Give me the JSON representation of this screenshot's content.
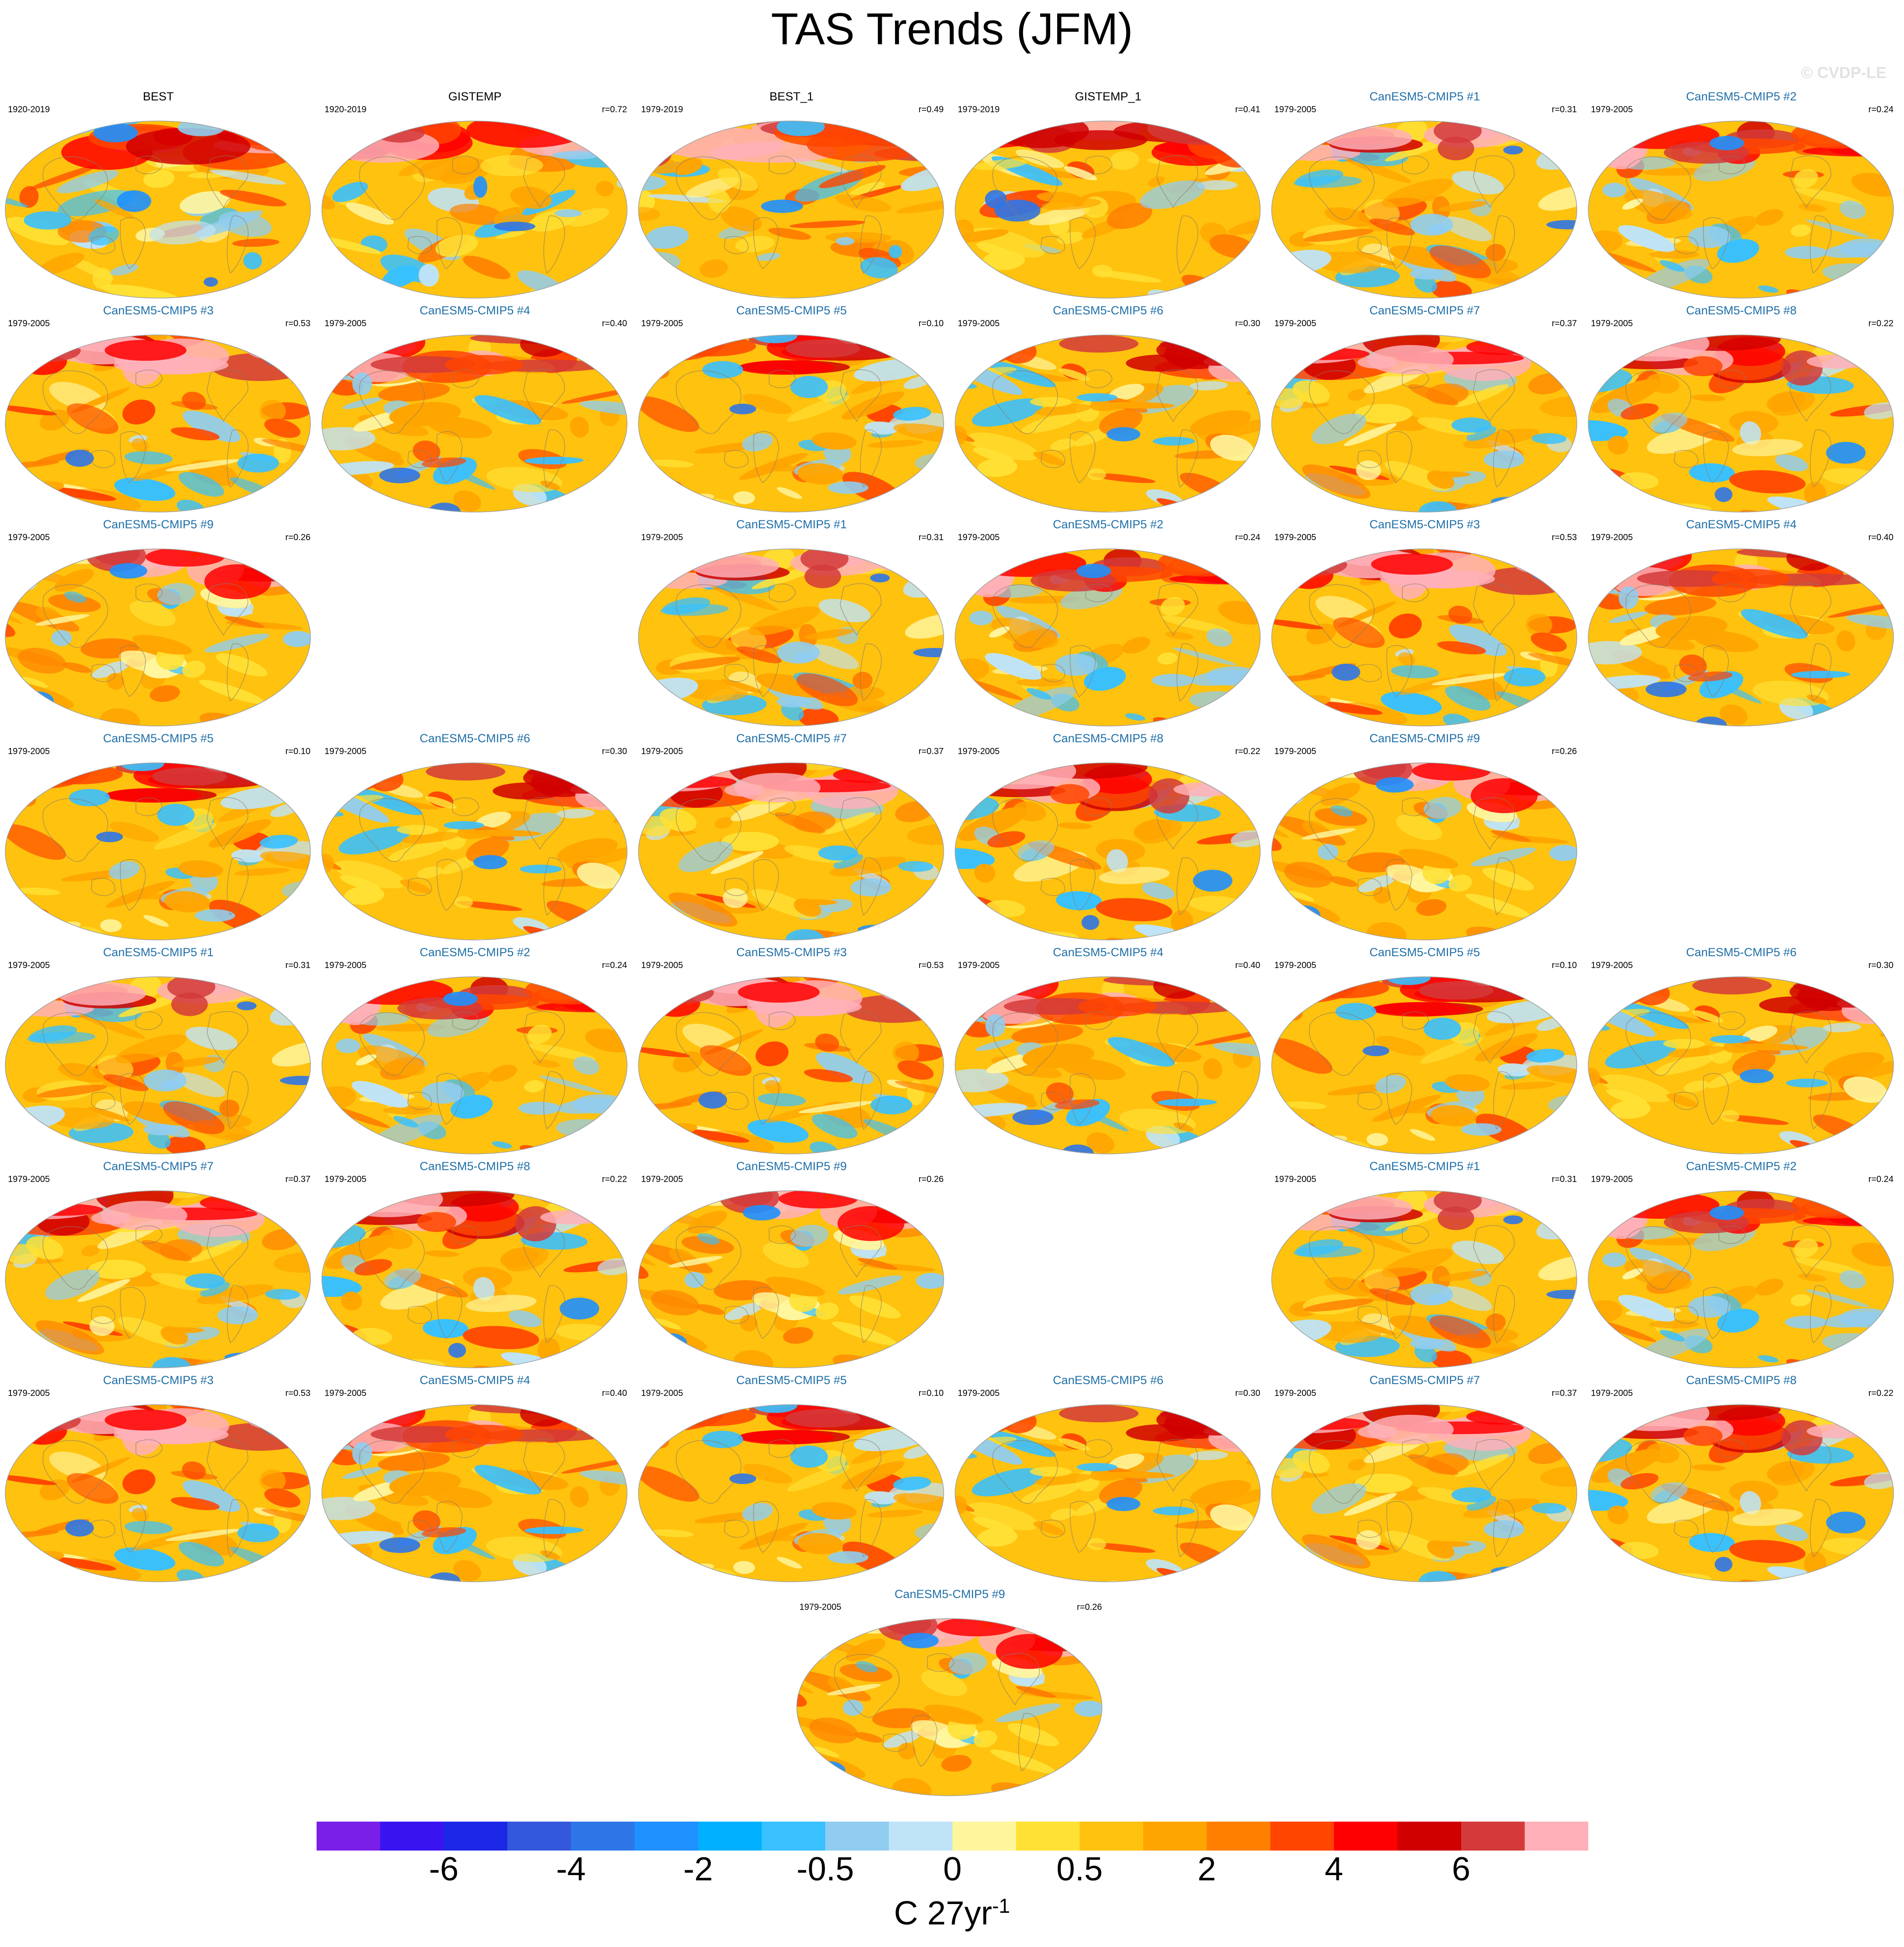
{
  "figure": {
    "title": "TAS Trends (JFM)",
    "watermark": "© CVDP-LE"
  },
  "panels": [
    {
      "title": "BEST",
      "period": "1920-2019",
      "corr": "",
      "kind": "obs",
      "seed": 1
    },
    {
      "title": "GISTEMP",
      "period": "1920-2019",
      "corr": "r=0.72",
      "kind": "obs",
      "seed": 2
    },
    {
      "title": "BEST_1",
      "period": "1979-2019",
      "corr": "r=0.49",
      "kind": "obs",
      "seed": 3
    },
    {
      "title": "GISTEMP_1",
      "period": "1979-2019",
      "corr": "r=0.41",
      "kind": "obs",
      "seed": 4
    },
    {
      "title": "CanESM5-CMIP5 #1",
      "period": "1979-2005",
      "corr": "r=0.31",
      "kind": "model",
      "seed": 11
    },
    {
      "title": "CanESM5-CMIP5 #2",
      "period": "1979-2005",
      "corr": "r=0.24",
      "kind": "model",
      "seed": 12
    },
    {
      "title": "CanESM5-CMIP5 #3",
      "period": "1979-2005",
      "corr": "r=0.53",
      "kind": "model",
      "seed": 13
    },
    {
      "title": "CanESM5-CMIP5 #4",
      "period": "1979-2005",
      "corr": "r=0.40",
      "kind": "model",
      "seed": 14
    },
    {
      "title": "CanESM5-CMIP5 #5",
      "period": "1979-2005",
      "corr": "r=0.10",
      "kind": "model",
      "seed": 15
    },
    {
      "title": "CanESM5-CMIP5 #6",
      "period": "1979-2005",
      "corr": "r=0.30",
      "kind": "model",
      "seed": 16
    },
    {
      "title": "CanESM5-CMIP5 #7",
      "period": "1979-2005",
      "corr": "r=0.37",
      "kind": "model",
      "seed": 17
    },
    {
      "title": "CanESM5-CMIP5 #8",
      "period": "1979-2005",
      "corr": "r=0.22",
      "kind": "model",
      "seed": 18
    },
    {
      "title": "CanESM5-CMIP5 #9",
      "period": "1979-2005",
      "corr": "r=0.26",
      "kind": "model",
      "seed": 19
    },
    {
      "title": "CanESM5-CMIP5 #1",
      "period": "1979-2005",
      "corr": "r=0.31",
      "kind": "model",
      "seed": 11
    },
    {
      "title": "CanESM5-CMIP5 #2",
      "period": "1979-2005",
      "corr": "r=0.24",
      "kind": "model",
      "seed": 12
    },
    {
      "title": "CanESM5-CMIP5 #3",
      "period": "1979-2005",
      "corr": "r=0.53",
      "kind": "model",
      "seed": 13
    },
    {
      "title": "CanESM5-CMIP5 #4",
      "period": "1979-2005",
      "corr": "r=0.40",
      "kind": "model",
      "seed": 14
    },
    {
      "title": "CanESM5-CMIP5 #5",
      "period": "1979-2005",
      "corr": "r=0.10",
      "kind": "model",
      "seed": 15
    },
    {
      "title": "CanESM5-CMIP5 #6",
      "period": "1979-2005",
      "corr": "r=0.30",
      "kind": "model",
      "seed": 16
    },
    {
      "title": "CanESM5-CMIP5 #7",
      "period": "1979-2005",
      "corr": "r=0.37",
      "kind": "model",
      "seed": 17
    },
    {
      "title": "CanESM5-CMIP5 #8",
      "period": "1979-2005",
      "corr": "r=0.22",
      "kind": "model",
      "seed": 18
    },
    {
      "title": "CanESM5-CMIP5 #9",
      "period": "1979-2005",
      "corr": "r=0.26",
      "kind": "model",
      "seed": 19
    },
    {
      "title": "CanESM5-CMIP5 #1",
      "period": "1979-2005",
      "corr": "r=0.31",
      "kind": "model",
      "seed": 11
    },
    {
      "title": "CanESM5-CMIP5 #2",
      "period": "1979-2005",
      "corr": "r=0.24",
      "kind": "model",
      "seed": 12
    },
    {
      "title": "CanESM5-CMIP5 #3",
      "period": "1979-2005",
      "corr": "r=0.53",
      "kind": "model",
      "seed": 13
    },
    {
      "title": "CanESM5-CMIP5 #4",
      "period": "1979-2005",
      "corr": "r=0.40",
      "kind": "model",
      "seed": 14
    },
    {
      "title": "CanESM5-CMIP5 #5",
      "period": "1979-2005",
      "corr": "r=0.10",
      "kind": "model",
      "seed": 15
    },
    {
      "title": "CanESM5-CMIP5 #6",
      "period": "1979-2005",
      "corr": "r=0.30",
      "kind": "model",
      "seed": 16
    },
    {
      "title": "CanESM5-CMIP5 #7",
      "period": "1979-2005",
      "corr": "r=0.37",
      "kind": "model",
      "seed": 17
    },
    {
      "title": "CanESM5-CMIP5 #8",
      "period": "1979-2005",
      "corr": "r=0.22",
      "kind": "model",
      "seed": 18
    },
    {
      "title": "CanESM5-CMIP5 #9",
      "period": "1979-2005",
      "corr": "r=0.26",
      "kind": "model",
      "seed": 19
    },
    {
      "title": "CanESM5-CMIP5 #1",
      "period": "1979-2005",
      "corr": "r=0.31",
      "kind": "model",
      "seed": 11
    },
    {
      "title": "CanESM5-CMIP5 #2",
      "period": "1979-2005",
      "corr": "r=0.24",
      "kind": "model",
      "seed": 12
    },
    {
      "title": "CanESM5-CMIP5 #3",
      "period": "1979-2005",
      "corr": "r=0.53",
      "kind": "model",
      "seed": 13
    },
    {
      "title": "CanESM5-CMIP5 #4",
      "period": "1979-2005",
      "corr": "r=0.40",
      "kind": "model",
      "seed": 14
    },
    {
      "title": "CanESM5-CMIP5 #5",
      "period": "1979-2005",
      "corr": "r=0.10",
      "kind": "model",
      "seed": 15
    },
    {
      "title": "CanESM5-CMIP5 #6",
      "period": "1979-2005",
      "corr": "r=0.30",
      "kind": "model",
      "seed": 16
    },
    {
      "title": "CanESM5-CMIP5 #7",
      "period": "1979-2005",
      "corr": "r=0.37",
      "kind": "model",
      "seed": 17
    },
    {
      "title": "CanESM5-CMIP5 #8",
      "period": "1979-2005",
      "corr": "r=0.22",
      "kind": "model",
      "seed": 18
    },
    {
      "title": "CanESM5-CMIP5 #9",
      "period": "1979-2005",
      "corr": "r=0.26",
      "kind": "model",
      "seed": 19
    }
  ],
  "colorbar": {
    "colors": [
      "#7a1fe8",
      "#3a14f0",
      "#1c28e6",
      "#3458dc",
      "#2e76e8",
      "#1e90ff",
      "#00b0ff",
      "#38c0ff",
      "#90cdf0",
      "#bfe3f7",
      "#fff59d",
      "#ffe135",
      "#ffc20e",
      "#ffa500",
      "#ff7f00",
      "#ff4500",
      "#ff0000",
      "#d00000",
      "#d43a3a",
      "#ffb0b8"
    ],
    "labels": [
      "-6",
      "-4",
      "-2",
      "-0.5",
      "0",
      "0.5",
      "2",
      "4",
      "6"
    ],
    "units": "C 27yr",
    "units_exponent": "-1"
  }
}
